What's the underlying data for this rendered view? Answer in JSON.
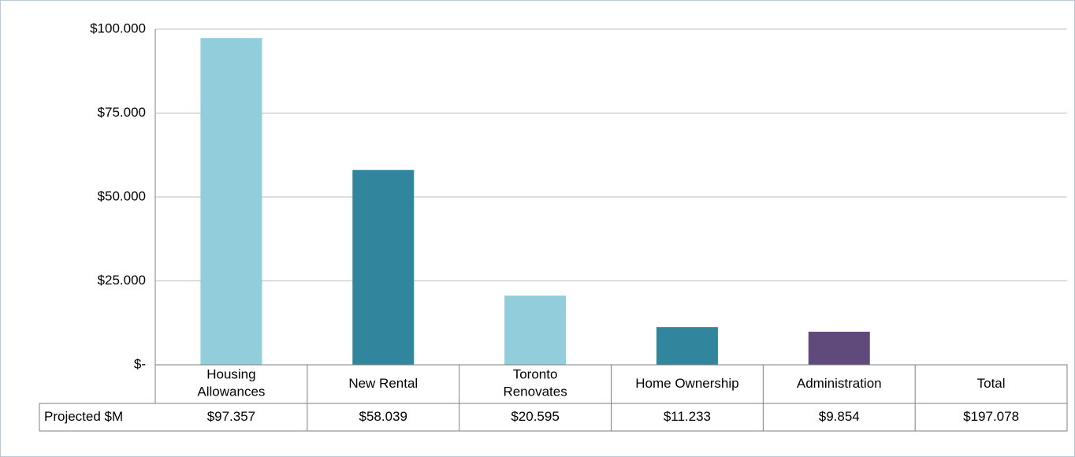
{
  "chart_data": {
    "type": "bar",
    "categories": [
      "Housing Allowances",
      "New Rental",
      "Toronto Renovates",
      "Home Ownership",
      "Administration",
      "Total"
    ],
    "series": [
      {
        "name": "Projected $M",
        "values": [
          97.357,
          58.039,
          20.595,
          11.233,
          9.854,
          197.078
        ],
        "value_labels": [
          "$97.357",
          "$58.039",
          "$20.595",
          "$11.233",
          "$9.854",
          "$197.078"
        ],
        "colors": [
          "#92cddc",
          "#31859c",
          "#92cddc",
          "#31859c",
          "#604a7b",
          null
        ]
      }
    ],
    "ylim": [
      0,
      100
    ],
    "yticks": [
      {
        "value": 0,
        "label": "$-"
      },
      {
        "value": 25,
        "label": "$25.000"
      },
      {
        "value": 50,
        "label": "$50.000"
      },
      {
        "value": 75,
        "label": "$75.000"
      },
      {
        "value": 100,
        "label": "$100.000"
      }
    ],
    "grid": true
  }
}
